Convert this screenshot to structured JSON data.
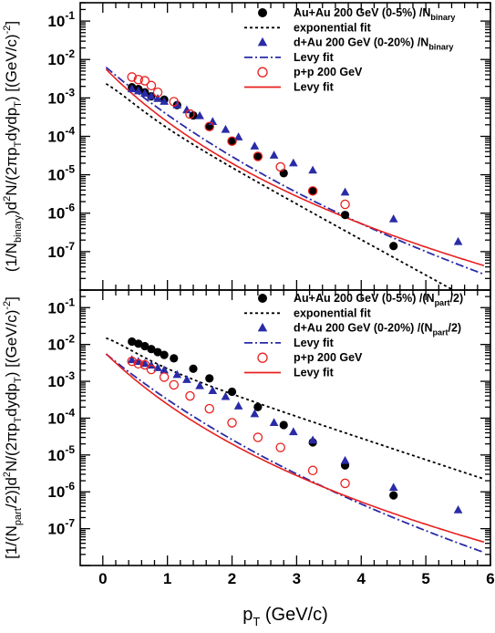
{
  "chart_data": [
    {
      "type": "scatter",
      "title": "",
      "xlabel": "p_T (GeV/c)",
      "xlabel_parts": {
        "main": "p",
        "sub": "T",
        "rest": " (GeV/c)"
      },
      "ylabel": "(1/N_binary) d²N/(2πp_T dydp_T) [(GeV/c)^-2]",
      "ylabel_parts": {
        "a": "(1/N",
        "a_sub": "binary",
        "b": ")d",
        "b_sup": "2",
        "c": "N/(2πp",
        "c_sub": "T",
        "d": "dydp",
        "d_sub": "T",
        "e": ") [(GeV/c)",
        "e_sup": "-2",
        "f": "]"
      },
      "xlim": [
        -0.35,
        6
      ],
      "ylim": [
        1e-08,
        0.3
      ],
      "log_y": true,
      "y_tick_labels": [
        {
          "base": "10",
          "exp": "-1"
        },
        {
          "base": "10",
          "exp": "-2"
        },
        {
          "base": "10",
          "exp": "-3"
        },
        {
          "base": "10",
          "exp": "-4"
        },
        {
          "base": "10",
          "exp": "-5"
        },
        {
          "base": "10",
          "exp": "-6"
        },
        {
          "base": "10",
          "exp": "-7"
        }
      ],
      "legend_position": "top-right",
      "series": [
        {
          "name": "Au+Au 200 GeV (0-5%) /N_binary",
          "legend_parts": {
            "main": "Au+Au 200 GeV (0-5%) /N",
            "sub": "binary"
          },
          "marker": "filled-circle",
          "color": "#000000",
          "x": [
            0.45,
            0.55,
            0.65,
            0.75,
            0.95,
            1.15,
            1.4,
            1.65,
            2.0,
            2.4,
            2.8,
            3.25,
            3.75,
            4.5
          ],
          "y": [
            0.0019,
            0.0017,
            0.0014,
            0.0011,
            0.0009,
            0.00065,
            0.00035,
            0.00018,
            7.5e-05,
            3e-05,
            1.1e-05,
            3.8e-06,
            9e-07,
            1.4e-07
          ]
        },
        {
          "name": "exponential fit",
          "legend_parts": {
            "main": "exponential fit",
            "sub": ""
          },
          "marker": "dashed-line",
          "color": "#000000",
          "fit": {
            "kind": "exp",
            "A": 0.0026,
            "c": 0.000456,
            "B": 3.81,
            "xmin": 0.05,
            "xmax": 5.9
          }
        },
        {
          "name": "d+Au 200 GeV (0-20%) /N_binary",
          "legend_parts": {
            "main": "d+Au 200 GeV (0-20%) /N",
            "sub": "binary"
          },
          "marker": "filled-triangle",
          "color": "#2a2ba6",
          "x": [
            0.45,
            0.55,
            0.65,
            0.75,
            0.85,
            0.95,
            1.15,
            1.3,
            1.5,
            1.7,
            1.9,
            2.1,
            2.35,
            2.65,
            2.95,
            3.25,
            3.75,
            4.5,
            5.5
          ],
          "y": [
            0.0017,
            0.0015,
            0.0013,
            0.0011,
            0.00095,
            0.0008,
            0.00065,
            0.00048,
            0.00034,
            0.00024,
            0.00015,
            9.5e-05,
            5.5e-05,
            3.2e-05,
            2e-05,
            1.3e-05,
            3.5e-06,
            7e-07,
            1.8e-07
          ]
        },
        {
          "name": "Levy fit",
          "legend_parts": {
            "main": "Levy fit",
            "sub": ""
          },
          "marker": "dash-dot-line",
          "color": "#2a2ba6",
          "fit": {
            "kind": "levy",
            "A": 0.0074,
            "T": 0.3,
            "n": 15,
            "xmin": 0.05,
            "xmax": 5.9
          }
        },
        {
          "name": "p+p 200 GeV",
          "legend_parts": {
            "main": "p+p 200 GeV",
            "sub": ""
          },
          "marker": "open-circle",
          "color": "#e8201f",
          "x": [
            0.45,
            0.55,
            0.65,
            0.75,
            0.85,
            1.1,
            1.35,
            1.65,
            2.0,
            2.4,
            2.75,
            3.25,
            3.75
          ],
          "y": [
            0.0035,
            0.003,
            0.0028,
            0.0021,
            0.0014,
            0.0008,
            0.00038,
            0.00018,
            7.5e-05,
            3e-05,
            1.6e-05,
            3.8e-06,
            1.7e-06
          ]
        },
        {
          "name": "Levy fit",
          "legend_parts": {
            "main": "Levy fit",
            "sub": ""
          },
          "marker": "solid-line",
          "color": "#e8201f",
          "fit": {
            "kind": "levy",
            "A": 0.0068,
            "T": 0.25,
            "n": 9.7,
            "xmin": 0.05,
            "xmax": 5.9
          }
        }
      ]
    },
    {
      "type": "scatter",
      "title": "",
      "xlabel": "p_T (GeV/c)",
      "ylabel": "[1/(N_part/2)] d²N/(2πp_T dydp_T) [(GeV/c)^-2]",
      "ylabel_parts": {
        "a": "[1/(N",
        "a_sub": "part",
        "b": "/2)]d",
        "b_sup": "2",
        "c": "N/(2πp",
        "c_sub": "T",
        "d": "dydp",
        "d_sub": "T",
        "e": ") [(GeV/c)",
        "e_sup": "-2",
        "f": "]"
      },
      "xlim": [
        -0.35,
        6
      ],
      "ylim": [
        1e-08,
        0.3
      ],
      "log_y": true,
      "x_ticks": [
        0,
        1,
        2,
        3,
        4,
        5,
        6
      ],
      "x_tick_labels": [
        "0",
        "1",
        "2",
        "3",
        "4",
        "5",
        "6"
      ],
      "y_tick_labels": [
        {
          "base": "10",
          "exp": "-1"
        },
        {
          "base": "10",
          "exp": "-2"
        },
        {
          "base": "10",
          "exp": "-3"
        },
        {
          "base": "10",
          "exp": "-4"
        },
        {
          "base": "10",
          "exp": "-5"
        },
        {
          "base": "10",
          "exp": "-6"
        },
        {
          "base": "10",
          "exp": "-7"
        }
      ],
      "legend_position": "top-right",
      "series": [
        {
          "name": "Au+Au 200 GeV (0-5%) /(N_part/2)",
          "legend_parts": {
            "main": "Au+Au 200 GeV (0-5%) /(N",
            "sub": "part",
            "tail": "/2)"
          },
          "marker": "filled-circle",
          "color": "#000000",
          "x": [
            0.45,
            0.55,
            0.65,
            0.75,
            0.85,
            0.95,
            1.1,
            1.4,
            1.65,
            2.0,
            2.4,
            2.8,
            3.25,
            3.75,
            4.5
          ],
          "y": [
            0.012,
            0.0105,
            0.009,
            0.0075,
            0.0062,
            0.0052,
            0.0042,
            0.0022,
            0.0012,
            0.00052,
            0.0002,
            6.5e-05,
            2.2e-05,
            5.2e-06,
            8e-07
          ]
        },
        {
          "name": "exponential fit",
          "legend_parts": {
            "main": "exponential fit",
            "sub": "",
            "tail": ""
          },
          "marker": "dashed-line",
          "color": "#000000",
          "fit": {
            "kind": "exp",
            "A": 0.016,
            "c": 0.00208,
            "B": 3.03,
            "xmin": 0.05,
            "xmax": 5.9
          }
        },
        {
          "name": "d+Au 200 GeV (0-20%) /(N_part/2)",
          "legend_parts": {
            "main": "d+Au 200 GeV (0-20%) /(N",
            "sub": "part",
            "tail": "/2)"
          },
          "marker": "filled-triangle",
          "color": "#2a2ba6",
          "x": [
            0.45,
            0.55,
            0.65,
            0.75,
            0.85,
            0.95,
            1.15,
            1.3,
            1.5,
            1.7,
            1.9,
            2.1,
            2.35,
            2.65,
            2.95,
            3.25,
            3.75,
            4.5,
            5.5
          ],
          "y": [
            0.0038,
            0.0034,
            0.003,
            0.0027,
            0.0023,
            0.002,
            0.0015,
            0.0011,
            0.00075,
            0.00055,
            0.00038,
            0.00021,
            0.00013,
            7.5e-05,
            4.2e-05,
            2.5e-05,
            7e-06,
            1.3e-06,
            3.2e-07
          ]
        },
        {
          "name": "Levy fit",
          "legend_parts": {
            "main": "Levy fit",
            "sub": "",
            "tail": ""
          },
          "marker": "dash-dot-line",
          "color": "#2a2ba6",
          "fit": {
            "kind": "levy",
            "A": 0.0065,
            "T": 0.3,
            "n": 15,
            "xmin": 0.05,
            "xmax": 5.9
          }
        },
        {
          "name": "p+p 200 GeV",
          "legend_parts": {
            "main": "p+p 200 GeV",
            "sub": "",
            "tail": ""
          },
          "marker": "open-circle",
          "color": "#e8201f",
          "x": [
            0.45,
            0.55,
            0.65,
            0.75,
            0.95,
            1.1,
            1.35,
            1.65,
            2.0,
            2.4,
            2.75,
            3.25,
            3.75
          ],
          "y": [
            0.0035,
            0.003,
            0.0028,
            0.0021,
            0.0013,
            0.0008,
            0.0004,
            0.00018,
            7.5e-05,
            3e-05,
            1.6e-05,
            3.8e-06,
            1.7e-06
          ]
        },
        {
          "name": "Levy fit",
          "legend_parts": {
            "main": "Levy fit",
            "sub": "",
            "tail": ""
          },
          "marker": "solid-line",
          "color": "#e8201f",
          "fit": {
            "kind": "levy",
            "A": 0.0068,
            "T": 0.25,
            "n": 9.7,
            "xmin": 0.05,
            "xmax": 5.9
          }
        }
      ]
    }
  ]
}
